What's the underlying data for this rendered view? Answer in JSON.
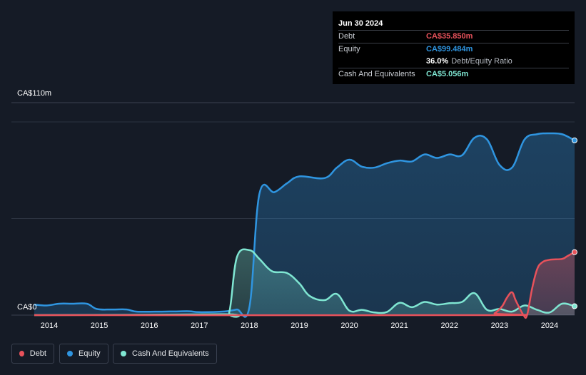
{
  "tooltip": {
    "date": "Jun 30 2024",
    "debt_label": "Debt",
    "debt_value": "CA$35.850m",
    "equity_label": "Equity",
    "equity_value": "CA$99.484m",
    "ratio_value": "36.0%",
    "ratio_label": "Debt/Equity Ratio",
    "cash_label": "Cash And Equivalents",
    "cash_value": "CA$5.056m"
  },
  "legend": {
    "debt": "Debt",
    "equity": "Equity",
    "cash": "Cash And Equivalents"
  },
  "colors": {
    "debt": "#e8525b",
    "equity": "#2f95e0",
    "cash": "#7fe6d2",
    "background": "#151b26"
  },
  "chart_data": {
    "type": "area",
    "y_top_label": "CA$110m",
    "y_bottom_label": "CA$0",
    "ylim": [
      0,
      110
    ],
    "xlim": [
      2013.7,
      2024.5
    ],
    "x_ticks": [
      "2014",
      "2015",
      "2016",
      "2017",
      "2018",
      "2019",
      "2020",
      "2021",
      "2022",
      "2023",
      "2024"
    ],
    "x_tick_values": [
      2014,
      2015,
      2016,
      2017,
      2018,
      2019,
      2020,
      2021,
      2022,
      2023,
      2024
    ],
    "legend_position": "bottom-left",
    "series": [
      {
        "name": "Equity",
        "x": [
          2013.7,
          2013.95,
          2014.2,
          2014.45,
          2014.75,
          2014.95,
          2015.25,
          2015.55,
          2015.75,
          2016.25,
          2016.5,
          2016.8,
          2017.0,
          2017.5,
          2017.75,
          2018.0,
          2018.2,
          2018.5,
          2018.75,
          2019.0,
          2019.5,
          2019.75,
          2020.0,
          2020.25,
          2020.5,
          2020.75,
          2021.0,
          2021.25,
          2021.5,
          2021.75,
          2022.0,
          2022.25,
          2022.5,
          2022.75,
          2023.0,
          2023.25,
          2023.5,
          2023.75,
          2024.0,
          2024.25,
          2024.5
        ],
        "values": [
          6,
          5.5,
          6.5,
          6.5,
          6.5,
          3.5,
          3.2,
          3.2,
          2.0,
          2.0,
          2.1,
          2.2,
          1.7,
          2.1,
          3.2,
          4.5,
          69.0,
          70.0,
          75.0,
          79.0,
          78.0,
          84.0,
          88.5,
          84.5,
          84.0,
          86.5,
          88.0,
          87.5,
          91.5,
          89.5,
          91.5,
          91.0,
          101.0,
          100.0,
          85.5,
          84.0,
          100.0,
          103.0,
          103.5,
          103.0,
          99.484
        ]
      },
      {
        "name": "Cash And Equivalents",
        "x": [
          2013.7,
          2017.45,
          2017.6,
          2017.75,
          2018.0,
          2018.2,
          2018.45,
          2018.75,
          2019.0,
          2019.2,
          2019.5,
          2019.75,
          2020.0,
          2020.25,
          2020.5,
          2020.75,
          2021.0,
          2021.25,
          2021.5,
          2021.75,
          2022.0,
          2022.25,
          2022.5,
          2022.75,
          2023.0,
          2023.25,
          2023.5,
          2023.75,
          2024.0,
          2024.25,
          2024.5
        ],
        "values": [
          0,
          0.5,
          2.0,
          33.0,
          37.0,
          32.0,
          25.0,
          24.0,
          18.0,
          11.0,
          8.5,
          12.0,
          2.5,
          3.0,
          1.5,
          1.8,
          7.0,
          4.5,
          7.5,
          6.0,
          6.8,
          7.5,
          12.5,
          3.0,
          3.5,
          2.0,
          5.5,
          3.0,
          1.5,
          6.5,
          5.056
        ]
      },
      {
        "name": "Debt",
        "x": [
          2013.7,
          2022.78,
          2022.9,
          2023.05,
          2023.15,
          2023.25,
          2023.33,
          2023.48,
          2023.55,
          2023.65,
          2023.75,
          2023.85,
          2024.0,
          2024.25,
          2024.35,
          2024.5
        ],
        "values": [
          0,
          0,
          1.0,
          5.0,
          10.0,
          13.0,
          8.0,
          0,
          0,
          15.0,
          26.0,
          30.0,
          31.5,
          32.0,
          33.5,
          35.85
        ]
      }
    ]
  }
}
